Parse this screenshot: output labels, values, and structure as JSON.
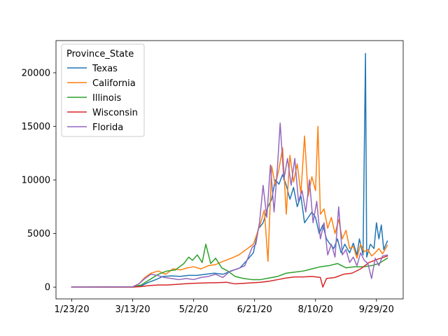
{
  "chart_data": {
    "type": "line",
    "title": "",
    "xlabel": "",
    "ylabel": "",
    "legend": {
      "title": "Province_State",
      "placement": "top-left"
    },
    "x_start": "1/23/20",
    "x_end": "10/8/20",
    "xticks": [
      "1/23/20",
      "3/13/20",
      "5/2/20",
      "6/21/20",
      "8/10/20",
      "9/29/20"
    ],
    "yticks": [
      0,
      5000,
      10000,
      15000,
      20000
    ],
    "ylim": [
      -1100,
      23000
    ],
    "series": [
      {
        "name": "Texas",
        "color": "#1f77b4",
        "points": [
          [
            "1/23/20",
            0
          ],
          [
            "3/13/20",
            10
          ],
          [
            "3/20/20",
            100
          ],
          [
            "3/25/20",
            400
          ],
          [
            "4/1/20",
            700
          ],
          [
            "4/7/20",
            1000
          ],
          [
            "4/14/20",
            1050
          ],
          [
            "4/21/20",
            1000
          ],
          [
            "4/28/20",
            1100
          ],
          [
            "5/5/20",
            1100
          ],
          [
            "5/12/20",
            1200
          ],
          [
            "5/19/20",
            1300
          ],
          [
            "5/26/20",
            1200
          ],
          [
            "6/2/20",
            1500
          ],
          [
            "6/9/20",
            1800
          ],
          [
            "6/14/20",
            2400
          ],
          [
            "6/20/20",
            3200
          ],
          [
            "6/24/20",
            5400
          ],
          [
            "6/28/20",
            6000
          ],
          [
            "7/2/20",
            7500
          ],
          [
            "7/5/20",
            8200
          ],
          [
            "7/8/20",
            10000
          ],
          [
            "7/11/20",
            9600
          ],
          [
            "7/14/20",
            10500
          ],
          [
            "7/17/20",
            9500
          ],
          [
            "7/20/20",
            8200
          ],
          [
            "7/23/20",
            9300
          ],
          [
            "7/26/20",
            7500
          ],
          [
            "7/29/20",
            8500
          ],
          [
            "8/1/20",
            6000
          ],
          [
            "8/4/20",
            6500
          ],
          [
            "8/7/20",
            7000
          ],
          [
            "8/10/20",
            6500
          ],
          [
            "8/13/20",
            5000
          ],
          [
            "8/16/20",
            5800
          ],
          [
            "8/19/20",
            4500
          ],
          [
            "8/22/20",
            4000
          ],
          [
            "8/25/20",
            3600
          ],
          [
            "8/28/20",
            4500
          ],
          [
            "8/31/20",
            3200
          ],
          [
            "9/3/20",
            4000
          ],
          [
            "9/7/20",
            3200
          ],
          [
            "9/10/20",
            4100
          ],
          [
            "9/13/20",
            3000
          ],
          [
            "9/15/20",
            4500
          ],
          [
            "9/18/20",
            3000
          ],
          [
            "9/20/20",
            21800
          ],
          [
            "9/21/20",
            2800
          ],
          [
            "9/24/20",
            4000
          ],
          [
            "9/27/20",
            3600
          ],
          [
            "9/29/20",
            6000
          ],
          [
            "10/1/20",
            4500
          ],
          [
            "10/3/20",
            5800
          ],
          [
            "10/5/20",
            3500
          ],
          [
            "10/8/20",
            4300
          ]
        ]
      },
      {
        "name": "California",
        "color": "#ff7f0e",
        "points": [
          [
            "1/23/20",
            0
          ],
          [
            "3/13/20",
            20
          ],
          [
            "3/18/20",
            300
          ],
          [
            "3/23/20",
            900
          ],
          [
            "3/28/20",
            1300
          ],
          [
            "4/3/20",
            1500
          ],
          [
            "4/9/20",
            1200
          ],
          [
            "4/15/20",
            1700
          ],
          [
            "4/21/20",
            1600
          ],
          [
            "4/27/20",
            1800
          ],
          [
            "5/2/20",
            1900
          ],
          [
            "5/8/20",
            1700
          ],
          [
            "5/14/20",
            2000
          ],
          [
            "5/20/20",
            2100
          ],
          [
            "5/26/20",
            2400
          ],
          [
            "6/2/20",
            2700
          ],
          [
            "6/8/20",
            3000
          ],
          [
            "6/14/20",
            3500
          ],
          [
            "6/20/20",
            4000
          ],
          [
            "6/23/20",
            5000
          ],
          [
            "6/26/20",
            6000
          ],
          [
            "6/29/20",
            7200
          ],
          [
            "7/2/20",
            2400
          ],
          [
            "7/5/20",
            11300
          ],
          [
            "7/8/20",
            9500
          ],
          [
            "7/11/20",
            11000
          ],
          [
            "7/14/20",
            13000
          ],
          [
            "7/17/20",
            6800
          ],
          [
            "7/20/20",
            12300
          ],
          [
            "7/23/20",
            9800
          ],
          [
            "7/26/20",
            11500
          ],
          [
            "7/29/20",
            8700
          ],
          [
            "8/1/20",
            14100
          ],
          [
            "8/4/20",
            8500
          ],
          [
            "8/7/20",
            10300
          ],
          [
            "8/10/20",
            9000
          ],
          [
            "8/12/20",
            15000
          ],
          [
            "8/14/20",
            6800
          ],
          [
            "8/17/20",
            7300
          ],
          [
            "8/20/20",
            5500
          ],
          [
            "8/23/20",
            6500
          ],
          [
            "8/26/20",
            5000
          ],
          [
            "8/29/20",
            6300
          ],
          [
            "9/1/20",
            4500
          ],
          [
            "9/4/20",
            5300
          ],
          [
            "9/7/20",
            3600
          ],
          [
            "9/10/20",
            3800
          ],
          [
            "9/13/20",
            2700
          ],
          [
            "9/16/20",
            4000
          ],
          [
            "9/19/20",
            3300
          ],
          [
            "9/22/20",
            3500
          ],
          [
            "9/25/20",
            2900
          ],
          [
            "9/28/20",
            3200
          ],
          [
            "10/1/20",
            3600
          ],
          [
            "10/4/20",
            3100
          ],
          [
            "10/8/20",
            3900
          ]
        ]
      },
      {
        "name": "Illinois",
        "color": "#2ca02c",
        "points": [
          [
            "1/23/20",
            0
          ],
          [
            "3/13/20",
            20
          ],
          [
            "3/20/20",
            200
          ],
          [
            "3/27/20",
            700
          ],
          [
            "4/3/20",
            1200
          ],
          [
            "4/10/20",
            1500
          ],
          [
            "4/17/20",
            1600
          ],
          [
            "4/24/20",
            2200
          ],
          [
            "4/28/20",
            2800
          ],
          [
            "5/1/20",
            2500
          ],
          [
            "5/5/20",
            3000
          ],
          [
            "5/9/20",
            2300
          ],
          [
            "5/12/20",
            4000
          ],
          [
            "5/16/20",
            2200
          ],
          [
            "5/20/20",
            2700
          ],
          [
            "5/25/20",
            1800
          ],
          [
            "5/30/20",
            1500
          ],
          [
            "6/5/20",
            1000
          ],
          [
            "6/12/20",
            800
          ],
          [
            "6/19/20",
            700
          ],
          [
            "6/26/20",
            700
          ],
          [
            "7/3/20",
            850
          ],
          [
            "7/10/20",
            1000
          ],
          [
            "7/17/20",
            1300
          ],
          [
            "7/24/20",
            1400
          ],
          [
            "7/31/20",
            1500
          ],
          [
            "8/7/20",
            1700
          ],
          [
            "8/14/20",
            1900
          ],
          [
            "8/21/20",
            2000
          ],
          [
            "8/28/20",
            2200
          ],
          [
            "9/4/20",
            1800
          ],
          [
            "9/11/20",
            1900
          ],
          [
            "9/18/20",
            1900
          ],
          [
            "9/25/20",
            2000
          ],
          [
            "10/1/20",
            2200
          ],
          [
            "10/8/20",
            2700
          ]
        ]
      },
      {
        "name": "Wisconsin",
        "color": "#d62728",
        "points": [
          [
            "1/23/20",
            0
          ],
          [
            "3/13/20",
            5
          ],
          [
            "3/20/20",
            50
          ],
          [
            "3/27/20",
            150
          ],
          [
            "4/3/20",
            200
          ],
          [
            "4/10/20",
            200
          ],
          [
            "4/17/20",
            250
          ],
          [
            "4/24/20",
            300
          ],
          [
            "5/1/20",
            350
          ],
          [
            "5/8/20",
            380
          ],
          [
            "5/15/20",
            400
          ],
          [
            "5/22/20",
            420
          ],
          [
            "5/29/20",
            450
          ],
          [
            "6/5/20",
            300
          ],
          [
            "6/12/20",
            350
          ],
          [
            "6/19/20",
            400
          ],
          [
            "6/26/20",
            450
          ],
          [
            "7/3/20",
            550
          ],
          [
            "7/10/20",
            700
          ],
          [
            "7/17/20",
            850
          ],
          [
            "7/24/20",
            950
          ],
          [
            "7/31/20",
            950
          ],
          [
            "8/7/20",
            1000
          ],
          [
            "8/14/20",
            900
          ],
          [
            "8/16/20",
            0
          ],
          [
            "8/19/20",
            800
          ],
          [
            "8/26/20",
            900
          ],
          [
            "9/2/20",
            1200
          ],
          [
            "9/9/20",
            1300
          ],
          [
            "9/16/20",
            1700
          ],
          [
            "9/23/20",
            2300
          ],
          [
            "9/30/20",
            2600
          ],
          [
            "10/8/20",
            2900
          ]
        ]
      },
      {
        "name": "Florida",
        "color": "#9467bd",
        "points": [
          [
            "1/23/20",
            0
          ],
          [
            "3/13/20",
            30
          ],
          [
            "3/18/20",
            300
          ],
          [
            "3/23/20",
            800
          ],
          [
            "3/28/20",
            1200
          ],
          [
            "4/2/20",
            1100
          ],
          [
            "4/8/20",
            900
          ],
          [
            "4/14/20",
            800
          ],
          [
            "4/20/20",
            700
          ],
          [
            "4/26/20",
            800
          ],
          [
            "5/2/20",
            700
          ],
          [
            "5/8/20",
            900
          ],
          [
            "5/14/20",
            1000
          ],
          [
            "5/20/20",
            1200
          ],
          [
            "5/26/20",
            900
          ],
          [
            "6/1/20",
            1500
          ],
          [
            "6/7/20",
            1700
          ],
          [
            "6/13/20",
            2000
          ],
          [
            "6/19/20",
            3700
          ],
          [
            "6/22/20",
            4000
          ],
          [
            "6/25/20",
            6000
          ],
          [
            "6/28/20",
            9500
          ],
          [
            "7/1/20",
            6500
          ],
          [
            "7/4/20",
            11400
          ],
          [
            "7/7/20",
            7000
          ],
          [
            "7/10/20",
            11600
          ],
          [
            "7/12/20",
            15300
          ],
          [
            "7/15/20",
            10000
          ],
          [
            "7/18/20",
            12000
          ],
          [
            "7/21/20",
            9500
          ],
          [
            "7/24/20",
            12000
          ],
          [
            "7/27/20",
            8000
          ],
          [
            "7/30/20",
            9000
          ],
          [
            "8/2/20",
            7000
          ],
          [
            "8/5/20",
            10000
          ],
          [
            "8/8/20",
            6000
          ],
          [
            "8/11/20",
            8000
          ],
          [
            "8/14/20",
            4500
          ],
          [
            "8/17/20",
            6000
          ],
          [
            "8/20/20",
            3000
          ],
          [
            "8/23/20",
            4000
          ],
          [
            "8/26/20",
            2800
          ],
          [
            "8/29/20",
            7500
          ],
          [
            "9/1/20",
            3000
          ],
          [
            "9/4/20",
            3500
          ],
          [
            "9/7/20",
            2300
          ],
          [
            "9/10/20",
            2800
          ],
          [
            "9/13/20",
            2000
          ],
          [
            "9/16/20",
            3200
          ],
          [
            "9/19/20",
            2500
          ],
          [
            "9/22/20",
            2200
          ],
          [
            "9/25/20",
            800
          ],
          [
            "9/28/20",
            2700
          ],
          [
            "10/1/20",
            2000
          ],
          [
            "10/4/20",
            2900
          ],
          [
            "10/8/20",
            3000
          ]
        ]
      }
    ]
  }
}
